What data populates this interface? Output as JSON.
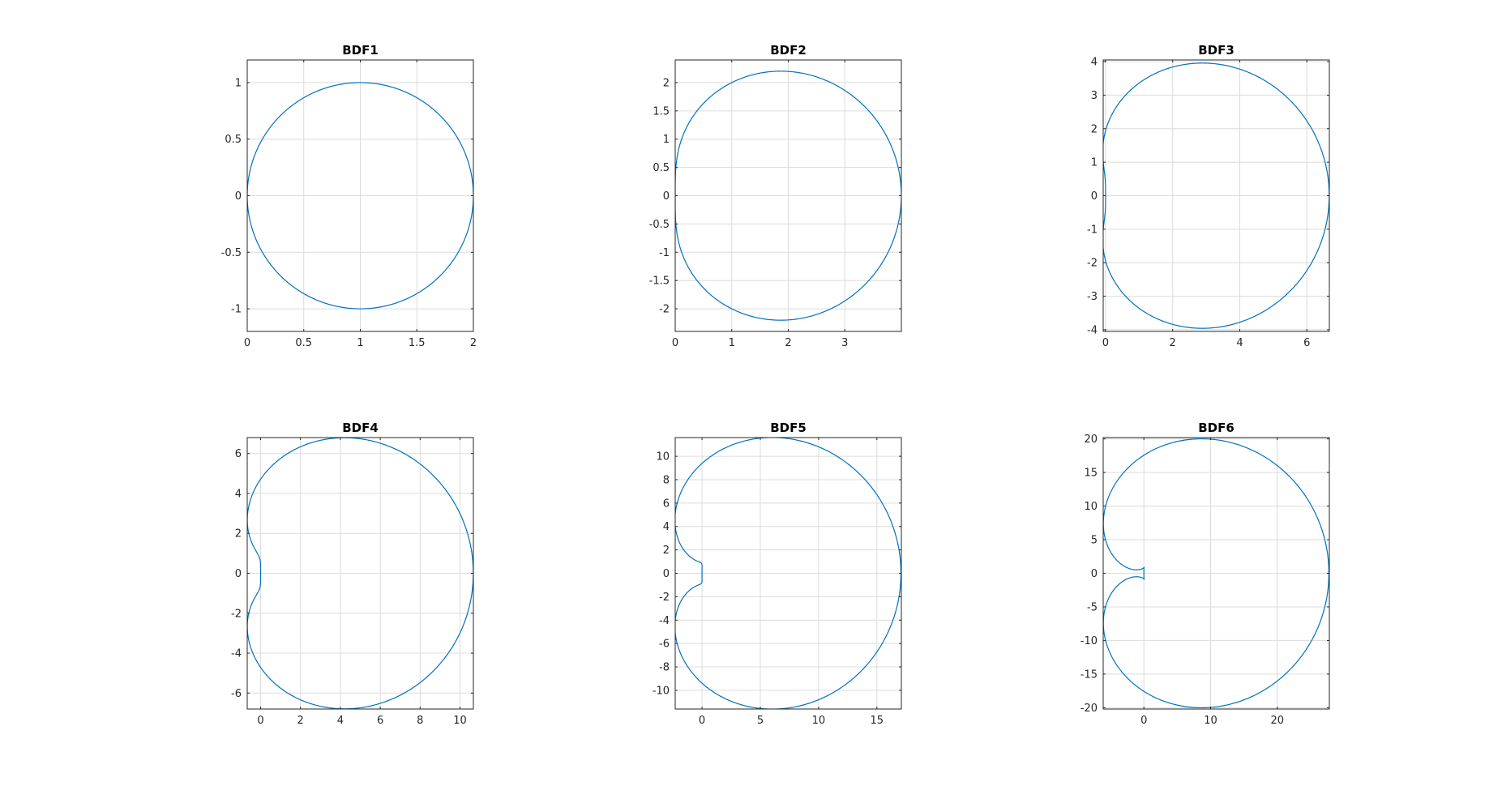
{
  "chart_data": [
    {
      "type": "line",
      "title": "BDF1",
      "order": 1,
      "xlim": [
        0,
        2
      ],
      "ylim": [
        -1.2,
        1.2
      ],
      "xticks": [
        "0",
        "0.5",
        "1",
        "1.5",
        "2"
      ],
      "xtick_values": [
        0,
        0.5,
        1,
        1.5,
        2
      ],
      "yticks": [
        "1",
        "0.5",
        "0",
        "-0.5",
        "-1"
      ],
      "ytick_values": [
        1,
        0.5,
        0,
        -0.5,
        -1
      ],
      "grid": true,
      "color": "#0072bd"
    },
    {
      "type": "line",
      "title": "BDF2",
      "order": 2,
      "xlim": [
        0,
        4
      ],
      "ylim": [
        -2.4,
        2.4
      ],
      "xticks": [
        "0",
        "1",
        "2",
        "3"
      ],
      "xtick_values": [
        0,
        1,
        2,
        3
      ],
      "yticks": [
        "2",
        "1.5",
        "1",
        "0.5",
        "0",
        "-0.5",
        "-1",
        "-1.5",
        "-2"
      ],
      "ytick_values": [
        2,
        1.5,
        1,
        0.5,
        0,
        -0.5,
        -1,
        -1.5,
        -2
      ],
      "grid": true,
      "color": "#0072bd"
    },
    {
      "type": "line",
      "title": "BDF3",
      "order": 3,
      "xlim": [
        -0.07,
        6.67
      ],
      "ylim": [
        -4.05,
        4.05
      ],
      "xticks": [
        "0",
        "2",
        "4",
        "6"
      ],
      "xtick_values": [
        0,
        2,
        4,
        6
      ],
      "yticks": [
        "4",
        "3",
        "2",
        "1",
        "0",
        "-1",
        "-2",
        "-3",
        "-4"
      ],
      "ytick_values": [
        4,
        3,
        2,
        1,
        0,
        -1,
        -2,
        -3,
        -4
      ],
      "grid": true,
      "color": "#0072bd"
    },
    {
      "type": "line",
      "title": "BDF4",
      "order": 4,
      "xlim": [
        -0.67,
        10.67
      ],
      "ylim": [
        -6.8,
        6.8
      ],
      "xticks": [
        "0",
        "2",
        "4",
        "6",
        "8",
        "10"
      ],
      "xtick_values": [
        0,
        2,
        4,
        6,
        8,
        10
      ],
      "yticks": [
        "6",
        "4",
        "2",
        "0",
        "-2",
        "-4",
        "-6"
      ],
      "ytick_values": [
        6,
        4,
        2,
        0,
        -2,
        -4,
        -6
      ],
      "grid": true,
      "color": "#0072bd"
    },
    {
      "type": "line",
      "title": "BDF5",
      "order": 5,
      "xlim": [
        -2.3,
        17.1
      ],
      "ylim": [
        -11.6,
        11.6
      ],
      "xticks": [
        "0",
        "5",
        "10",
        "15"
      ],
      "xtick_values": [
        0,
        5,
        10,
        15
      ],
      "yticks": [
        "10",
        "8",
        "6",
        "4",
        "2",
        "0",
        "-2",
        "-4",
        "-6",
        "-8",
        "-10"
      ],
      "ytick_values": [
        10,
        8,
        6,
        4,
        2,
        0,
        -2,
        -4,
        -6,
        -8,
        -10
      ],
      "grid": true,
      "color": "#0072bd"
    },
    {
      "type": "line",
      "title": "BDF6",
      "order": 6,
      "xlim": [
        -6.1,
        27.8
      ],
      "ylim": [
        -20.2,
        20.2
      ],
      "xticks": [
        "0",
        "10",
        "20"
      ],
      "xtick_values": [
        0,
        10,
        20
      ],
      "yticks": [
        "20",
        "15",
        "10",
        "5",
        "0",
        "-5",
        "-10",
        "-15",
        "-20"
      ],
      "ytick_values": [
        20,
        15,
        10,
        5,
        0,
        -5,
        -10,
        -15,
        -20
      ],
      "grid": true,
      "color": "#0072bd"
    }
  ]
}
